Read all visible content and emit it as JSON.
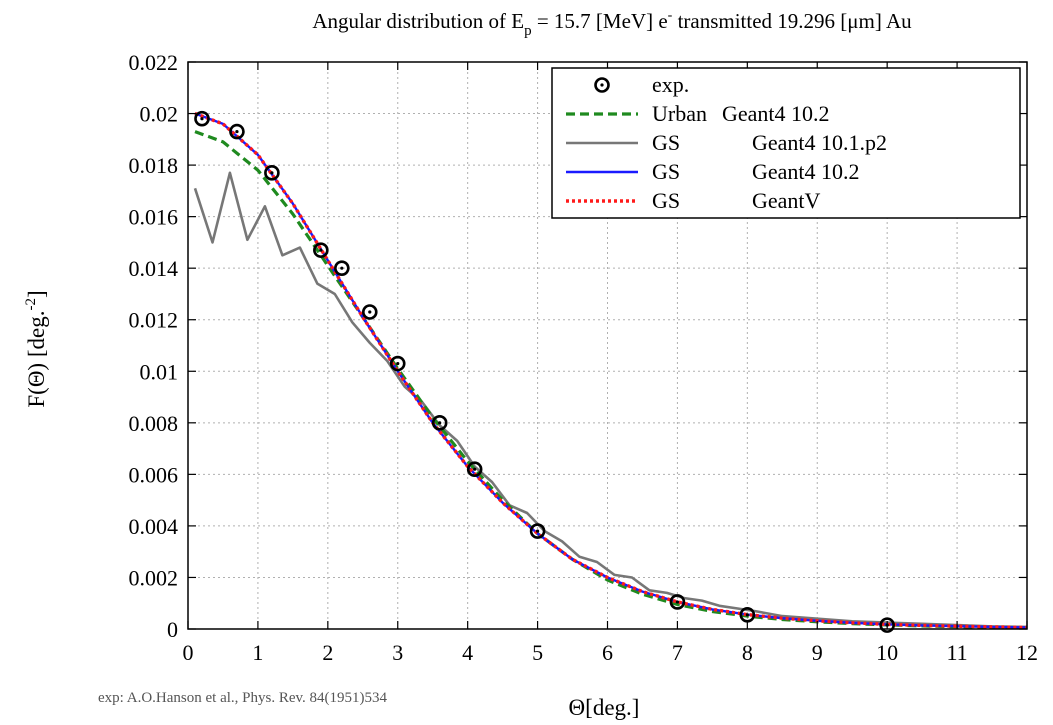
{
  "chart_data": {
    "type": "line",
    "title_prefix": "Angular distribution of E",
    "title_sub": "p",
    "title_mid": " = 15.7 [MeV] e",
    "title_sup": "-",
    "title_suffix": " transmitted 19.296 [μm] Au",
    "ylabel_main": "F(Θ) [deg.",
    "ylabel_sup": "-2",
    "ylabel_end": "]",
    "xlabel": "Θ[deg.]",
    "footnote": "exp: A.O.Hanson et al., Phys. Rev. 84(1951)534",
    "xlim": [
      0,
      12
    ],
    "ylim": [
      0,
      0.022
    ],
    "x_ticks": [
      "0",
      "1",
      "2",
      "3",
      "4",
      "5",
      "6",
      "7",
      "8",
      "9",
      "10",
      "11",
      "12"
    ],
    "y_ticks": [
      "0",
      "0.002",
      "0.004",
      "0.006",
      "0.008",
      "0.01",
      "0.012",
      "0.014",
      "0.016",
      "0.018",
      "0.02",
      "0.022"
    ],
    "grid": true,
    "legend_position": "top-right",
    "series": [
      {
        "name": "exp.",
        "label_a": "",
        "label_b": "exp.",
        "style": "markers",
        "color": "#000000",
        "x": [
          0.2,
          0.7,
          1.2,
          1.9,
          2.2,
          2.6,
          3.0,
          3.6,
          4.1,
          5.0,
          7.0,
          8.0,
          10.0
        ],
        "y": [
          0.0198,
          0.0193,
          0.0177,
          0.0147,
          0.014,
          0.0123,
          0.0103,
          0.008,
          0.0062,
          0.0038,
          0.00105,
          0.00055,
          0.00015
        ]
      },
      {
        "name": "Urban Geant4 10.2",
        "label_a": "Urban",
        "label_b": "Geant4 10.2",
        "style": "dashed",
        "color": "#1f8a1f",
        "x": [
          0.1,
          0.5,
          1.0,
          1.5,
          2.0,
          2.5,
          3.0,
          3.5,
          4.0,
          4.5,
          5.0,
          5.5,
          6.0,
          6.5,
          7.0,
          7.5,
          8.0,
          8.5,
          9.0,
          9.5,
          10.0,
          10.5,
          11.0,
          11.5,
          12.0
        ],
        "y": [
          0.0193,
          0.0189,
          0.0178,
          0.0161,
          0.0141,
          0.0121,
          0.0101,
          0.0082,
          0.0065,
          0.005,
          0.0037,
          0.0027,
          0.0019,
          0.00135,
          0.00095,
          0.00068,
          0.0005,
          0.00037,
          0.00028,
          0.00021,
          0.00016,
          0.00012,
          9e-05,
          7e-05,
          5e-05
        ]
      },
      {
        "name": "GS Geant4 10.1.p2",
        "label_a": "GS",
        "label_b": "Geant4 10.1.p2",
        "style": "solid",
        "color": "#777777",
        "x": [
          0.1,
          0.35,
          0.6,
          0.85,
          1.1,
          1.35,
          1.6,
          1.85,
          2.1,
          2.35,
          2.6,
          2.85,
          3.1,
          3.35,
          3.6,
          3.85,
          4.1,
          4.35,
          4.6,
          4.85,
          5.1,
          5.35,
          5.6,
          5.85,
          6.1,
          6.35,
          6.6,
          6.85,
          7.1,
          7.35,
          7.6,
          7.85,
          8.1,
          8.5,
          9.0,
          9.5,
          10.0,
          10.5,
          11.0,
          11.5,
          12.0
        ],
        "y": [
          0.0171,
          0.015,
          0.0177,
          0.0151,
          0.0164,
          0.0145,
          0.0148,
          0.0134,
          0.013,
          0.0119,
          0.0111,
          0.0104,
          0.0094,
          0.0088,
          0.0079,
          0.0073,
          0.0063,
          0.0057,
          0.0048,
          0.0045,
          0.0038,
          0.0034,
          0.0028,
          0.0026,
          0.0021,
          0.002,
          0.0015,
          0.0014,
          0.0012,
          0.0011,
          0.0009,
          0.0008,
          0.0007,
          0.0005,
          0.0004,
          0.0003,
          0.00025,
          0.0002,
          0.00015,
          0.0001,
          8e-05
        ]
      },
      {
        "name": "GS Geant4 10.2",
        "label_a": "GS",
        "label_b": "Geant4 10.2",
        "style": "solid",
        "color": "#1a1aff",
        "x": [
          0.1,
          0.5,
          1.0,
          1.5,
          2.0,
          2.5,
          3.0,
          3.5,
          4.0,
          4.5,
          5.0,
          5.5,
          6.0,
          6.5,
          7.0,
          7.5,
          8.0,
          8.5,
          9.0,
          9.5,
          10.0,
          10.5,
          11.0,
          11.5,
          12.0
        ],
        "y": [
          0.02,
          0.0196,
          0.0184,
          0.0165,
          0.0143,
          0.0121,
          0.01,
          0.008,
          0.0063,
          0.0049,
          0.0037,
          0.0027,
          0.002,
          0.00145,
          0.00105,
          0.00076,
          0.00056,
          0.00042,
          0.00032,
          0.00024,
          0.00018,
          0.00014,
          0.00011,
          8e-05,
          6e-05
        ]
      },
      {
        "name": "GS GeantV",
        "label_a": "GS",
        "label_b": "GeantV",
        "style": "dotted",
        "color": "#ff1a1a",
        "x": [
          0.1,
          0.5,
          1.0,
          1.5,
          2.0,
          2.5,
          3.0,
          3.5,
          4.0,
          4.5,
          5.0,
          5.5,
          6.0,
          6.5,
          7.0,
          7.5,
          8.0,
          8.5,
          9.0,
          9.5,
          10.0,
          10.5,
          11.0,
          11.5,
          12.0
        ],
        "y": [
          0.02,
          0.0196,
          0.0184,
          0.0165,
          0.0143,
          0.0121,
          0.01,
          0.008,
          0.0063,
          0.0049,
          0.0037,
          0.0027,
          0.002,
          0.00145,
          0.00105,
          0.00076,
          0.00056,
          0.00042,
          0.00032,
          0.00024,
          0.00018,
          0.00014,
          0.00011,
          8e-05,
          6e-05
        ]
      }
    ]
  }
}
